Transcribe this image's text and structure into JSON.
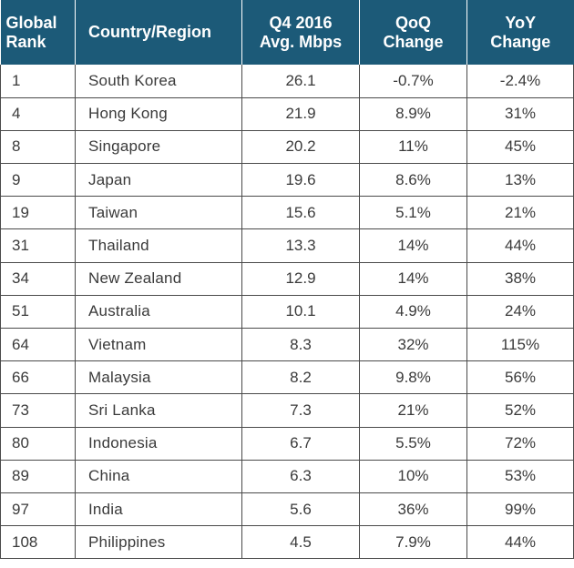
{
  "chart_data": {
    "type": "table",
    "columns": [
      [
        "Global",
        "Rank"
      ],
      [
        "Country/Region"
      ],
      [
        "Q4 2016",
        "Avg. Mbps"
      ],
      [
        "QoQ",
        "Change"
      ],
      [
        "YoY",
        "Change"
      ]
    ],
    "rows": [
      [
        "1",
        "South Korea",
        "26.1",
        "-0.7%",
        "-2.4%"
      ],
      [
        "4",
        "Hong Kong",
        "21.9",
        "8.9%",
        "31%"
      ],
      [
        "8",
        "Singapore",
        "20.2",
        "11%",
        "45%"
      ],
      [
        "9",
        "Japan",
        "19.6",
        "8.6%",
        "13%"
      ],
      [
        "19",
        "Taiwan",
        "15.6",
        "5.1%",
        "21%"
      ],
      [
        "31",
        "Thailand",
        "13.3",
        "14%",
        "44%"
      ],
      [
        "34",
        "New Zealand",
        "12.9",
        "14%",
        "38%"
      ],
      [
        "51",
        "Australia",
        "10.1",
        "4.9%",
        "24%"
      ],
      [
        "64",
        "Vietnam",
        "8.3",
        "32%",
        "115%"
      ],
      [
        "66",
        "Malaysia",
        "8.2",
        "9.8%",
        "56%"
      ],
      [
        "73",
        "Sri Lanka",
        "7.3",
        "21%",
        "52%"
      ],
      [
        "80",
        "Indonesia",
        "6.7",
        "5.5%",
        "72%"
      ],
      [
        "89",
        "China",
        "6.3",
        "10%",
        "53%"
      ],
      [
        "97",
        "India",
        "5.6",
        "36%",
        "99%"
      ],
      [
        "108",
        "Philippines",
        "4.5",
        "7.9%",
        "44%"
      ]
    ]
  },
  "colors": {
    "header_background": "#1c5a78",
    "header_text": "#ffffff",
    "cell_text": "#3a3a3a",
    "grid_lines": "#4a4a4a"
  }
}
